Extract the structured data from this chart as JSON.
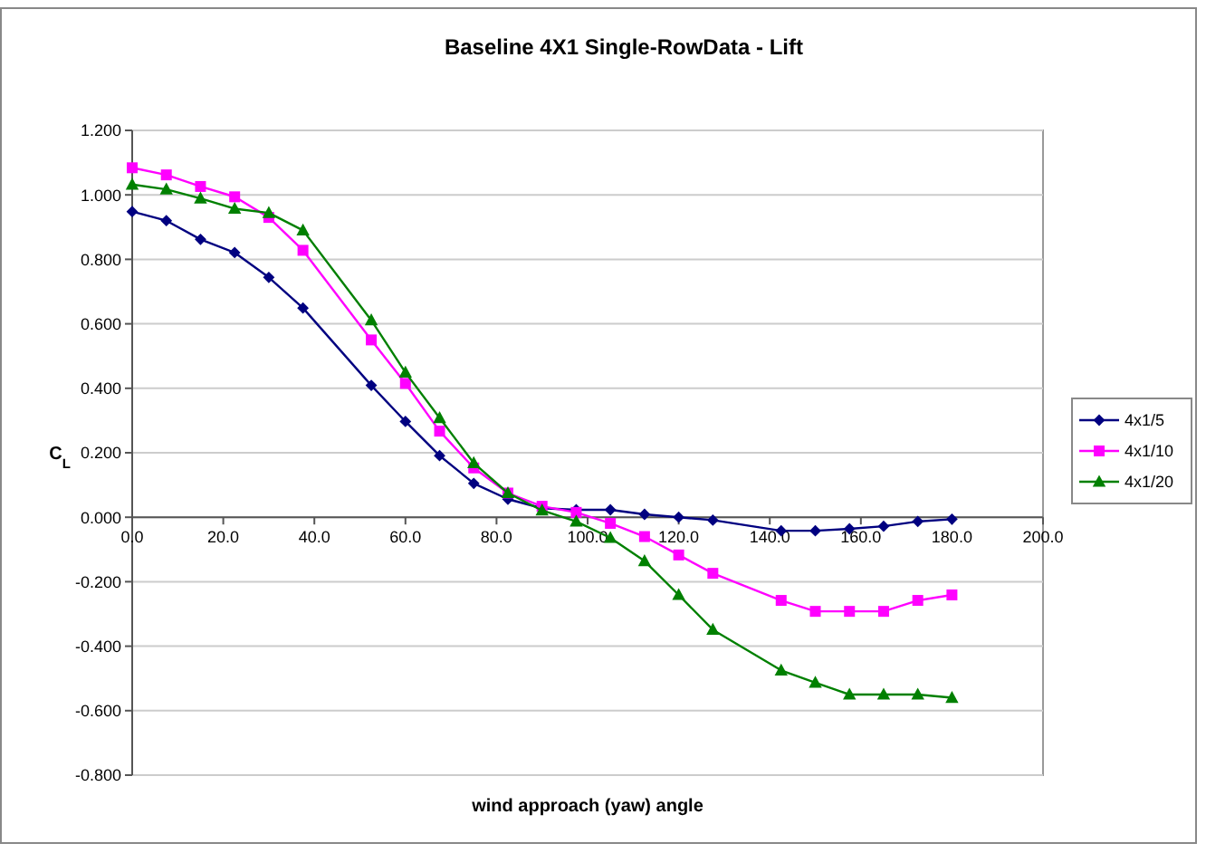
{
  "chart_data": {
    "type": "line",
    "title": "Baseline 4X1 Single-RowData - Lift",
    "xlabel": "wind approach (yaw) angle",
    "ylabel": "C$_{L}$",
    "x": [
      0,
      7.5,
      15,
      22.5,
      30,
      37.5,
      52.5,
      60,
      67.5,
      75,
      82.5,
      90,
      97.5,
      105,
      112.5,
      120,
      127.5,
      142.5,
      150,
      157.5,
      165,
      172.5,
      180
    ],
    "series": [
      {
        "name": "4x1/5",
        "color": "#000080",
        "marker": "diamond",
        "values": [
          0.948,
          0.92,
          0.862,
          0.821,
          0.744,
          0.649,
          0.409,
          0.297,
          0.191,
          0.105,
          0.056,
          0.028,
          0.023,
          0.023,
          0.009,
          0,
          -0.009,
          -0.042,
          -0.042,
          -0.036,
          -0.028,
          -0.013,
          -0.006
        ]
      },
      {
        "name": "4x1/10",
        "color": "#ff00ff",
        "marker": "square",
        "values": [
          1.084,
          1.062,
          1.026,
          0.994,
          0.93,
          0.828,
          0.55,
          0.415,
          0.267,
          0.153,
          0.075,
          0.034,
          0.015,
          -0.019,
          -0.06,
          -0.117,
          -0.174,
          -0.258,
          -0.292,
          -0.292,
          -0.292,
          -0.258,
          -0.241
        ]
      },
      {
        "name": "4x1/20",
        "color": "#008000",
        "marker": "triangle",
        "values": [
          1.032,
          1.017,
          0.989,
          0.957,
          0.944,
          0.89,
          0.611,
          0.449,
          0.308,
          0.168,
          0.075,
          0.021,
          -0.013,
          -0.064,
          -0.136,
          -0.241,
          -0.349,
          -0.475,
          -0.513,
          -0.55,
          -0.55,
          -0.55,
          -0.56
        ]
      }
    ],
    "xlim": [
      0,
      200
    ],
    "xticks": [
      {
        "value": 0,
        "label": "0.0"
      },
      {
        "value": 20,
        "label": "20.0"
      },
      {
        "value": 40,
        "label": "40.0"
      },
      {
        "value": 60,
        "label": "60.0"
      },
      {
        "value": 80,
        "label": "80.0"
      },
      {
        "value": 100,
        "label": "100.0"
      },
      {
        "value": 120,
        "label": "120.0"
      },
      {
        "value": 140,
        "label": "140.0"
      },
      {
        "value": 160,
        "label": "160.0"
      },
      {
        "value": 180,
        "label": "180.0"
      },
      {
        "value": 200,
        "label": "200.0"
      }
    ],
    "ylim": [
      -0.8,
      1.2
    ],
    "yticks": [
      {
        "value": -0.8,
        "label": "-0.800"
      },
      {
        "value": -0.6,
        "label": "-0.600"
      },
      {
        "value": -0.4,
        "label": "-0.400"
      },
      {
        "value": -0.2,
        "label": "-0.200"
      },
      {
        "value": 0,
        "label": "0.000"
      },
      {
        "value": 0.2,
        "label": "0.200"
      },
      {
        "value": 0.4,
        "label": "0.400"
      },
      {
        "value": 0.6,
        "label": "0.600"
      },
      {
        "value": 0.8,
        "label": "0.800"
      },
      {
        "value": 1,
        "label": "1.000"
      },
      {
        "value": 1.2,
        "label": "1.200"
      }
    ],
    "grid": "y",
    "legend": "right",
    "line_style": "solid"
  }
}
